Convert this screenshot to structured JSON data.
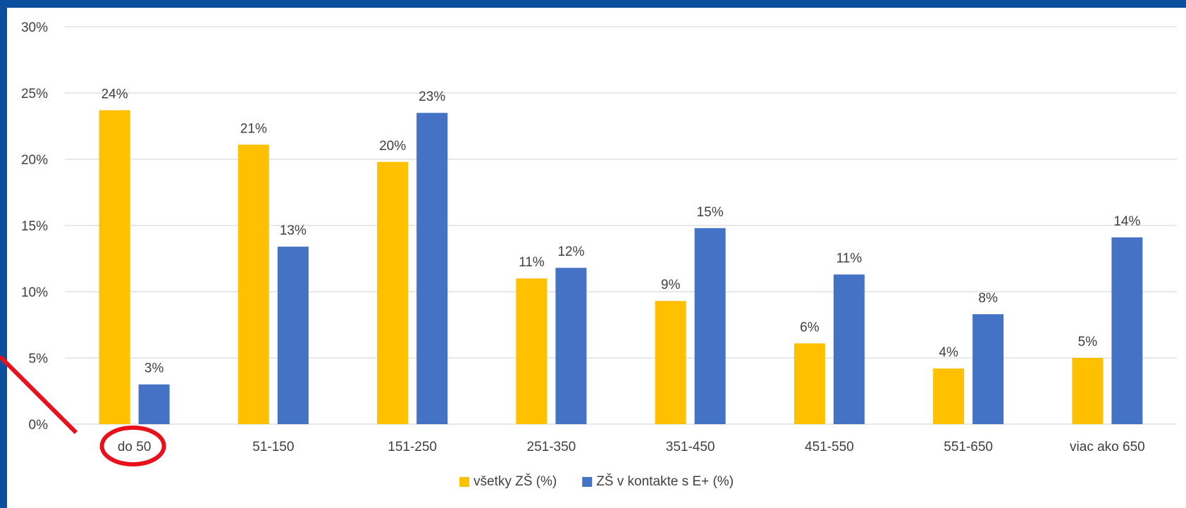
{
  "colors": {
    "frame": "#0b4f9e",
    "series_all": "#ffc000",
    "series_eplus": "#4472c4",
    "annotation": "#e8101a",
    "grid": "#d9d9d9",
    "text": "#404040"
  },
  "annotation": {
    "type": "circle-with-pointer-line",
    "target_category": "do 50"
  },
  "chart_data": {
    "type": "bar",
    "categories": [
      "do 50",
      "51-150",
      "151-250",
      "251-350",
      "351-450",
      "451-550",
      "551-650",
      "viac ako 650"
    ],
    "series": [
      {
        "name": "všetky ZŠ  (%)",
        "color": "#ffc000",
        "values": [
          23.7,
          21.1,
          19.8,
          11.0,
          9.3,
          6.1,
          4.2,
          5.0
        ],
        "labels": [
          "24%",
          "21%",
          "20%",
          "11%",
          "9%",
          "6%",
          "4%",
          "5%"
        ]
      },
      {
        "name": "ZŠ v kontakte s E+ (%)",
        "color": "#4472c4",
        "values": [
          3.0,
          13.4,
          23.5,
          11.8,
          14.8,
          11.3,
          8.3,
          14.1
        ],
        "labels": [
          "3%",
          "13%",
          "23%",
          "12%",
          "15%",
          "11%",
          "8%",
          "14%"
        ]
      }
    ],
    "ylim": [
      0,
      30
    ],
    "yticks": [
      "0%",
      "5%",
      "10%",
      "15%",
      "20%",
      "25%",
      "30%"
    ],
    "grid": true,
    "legend_position": "bottom-center",
    "title": "",
    "xlabel": "",
    "ylabel": ""
  }
}
